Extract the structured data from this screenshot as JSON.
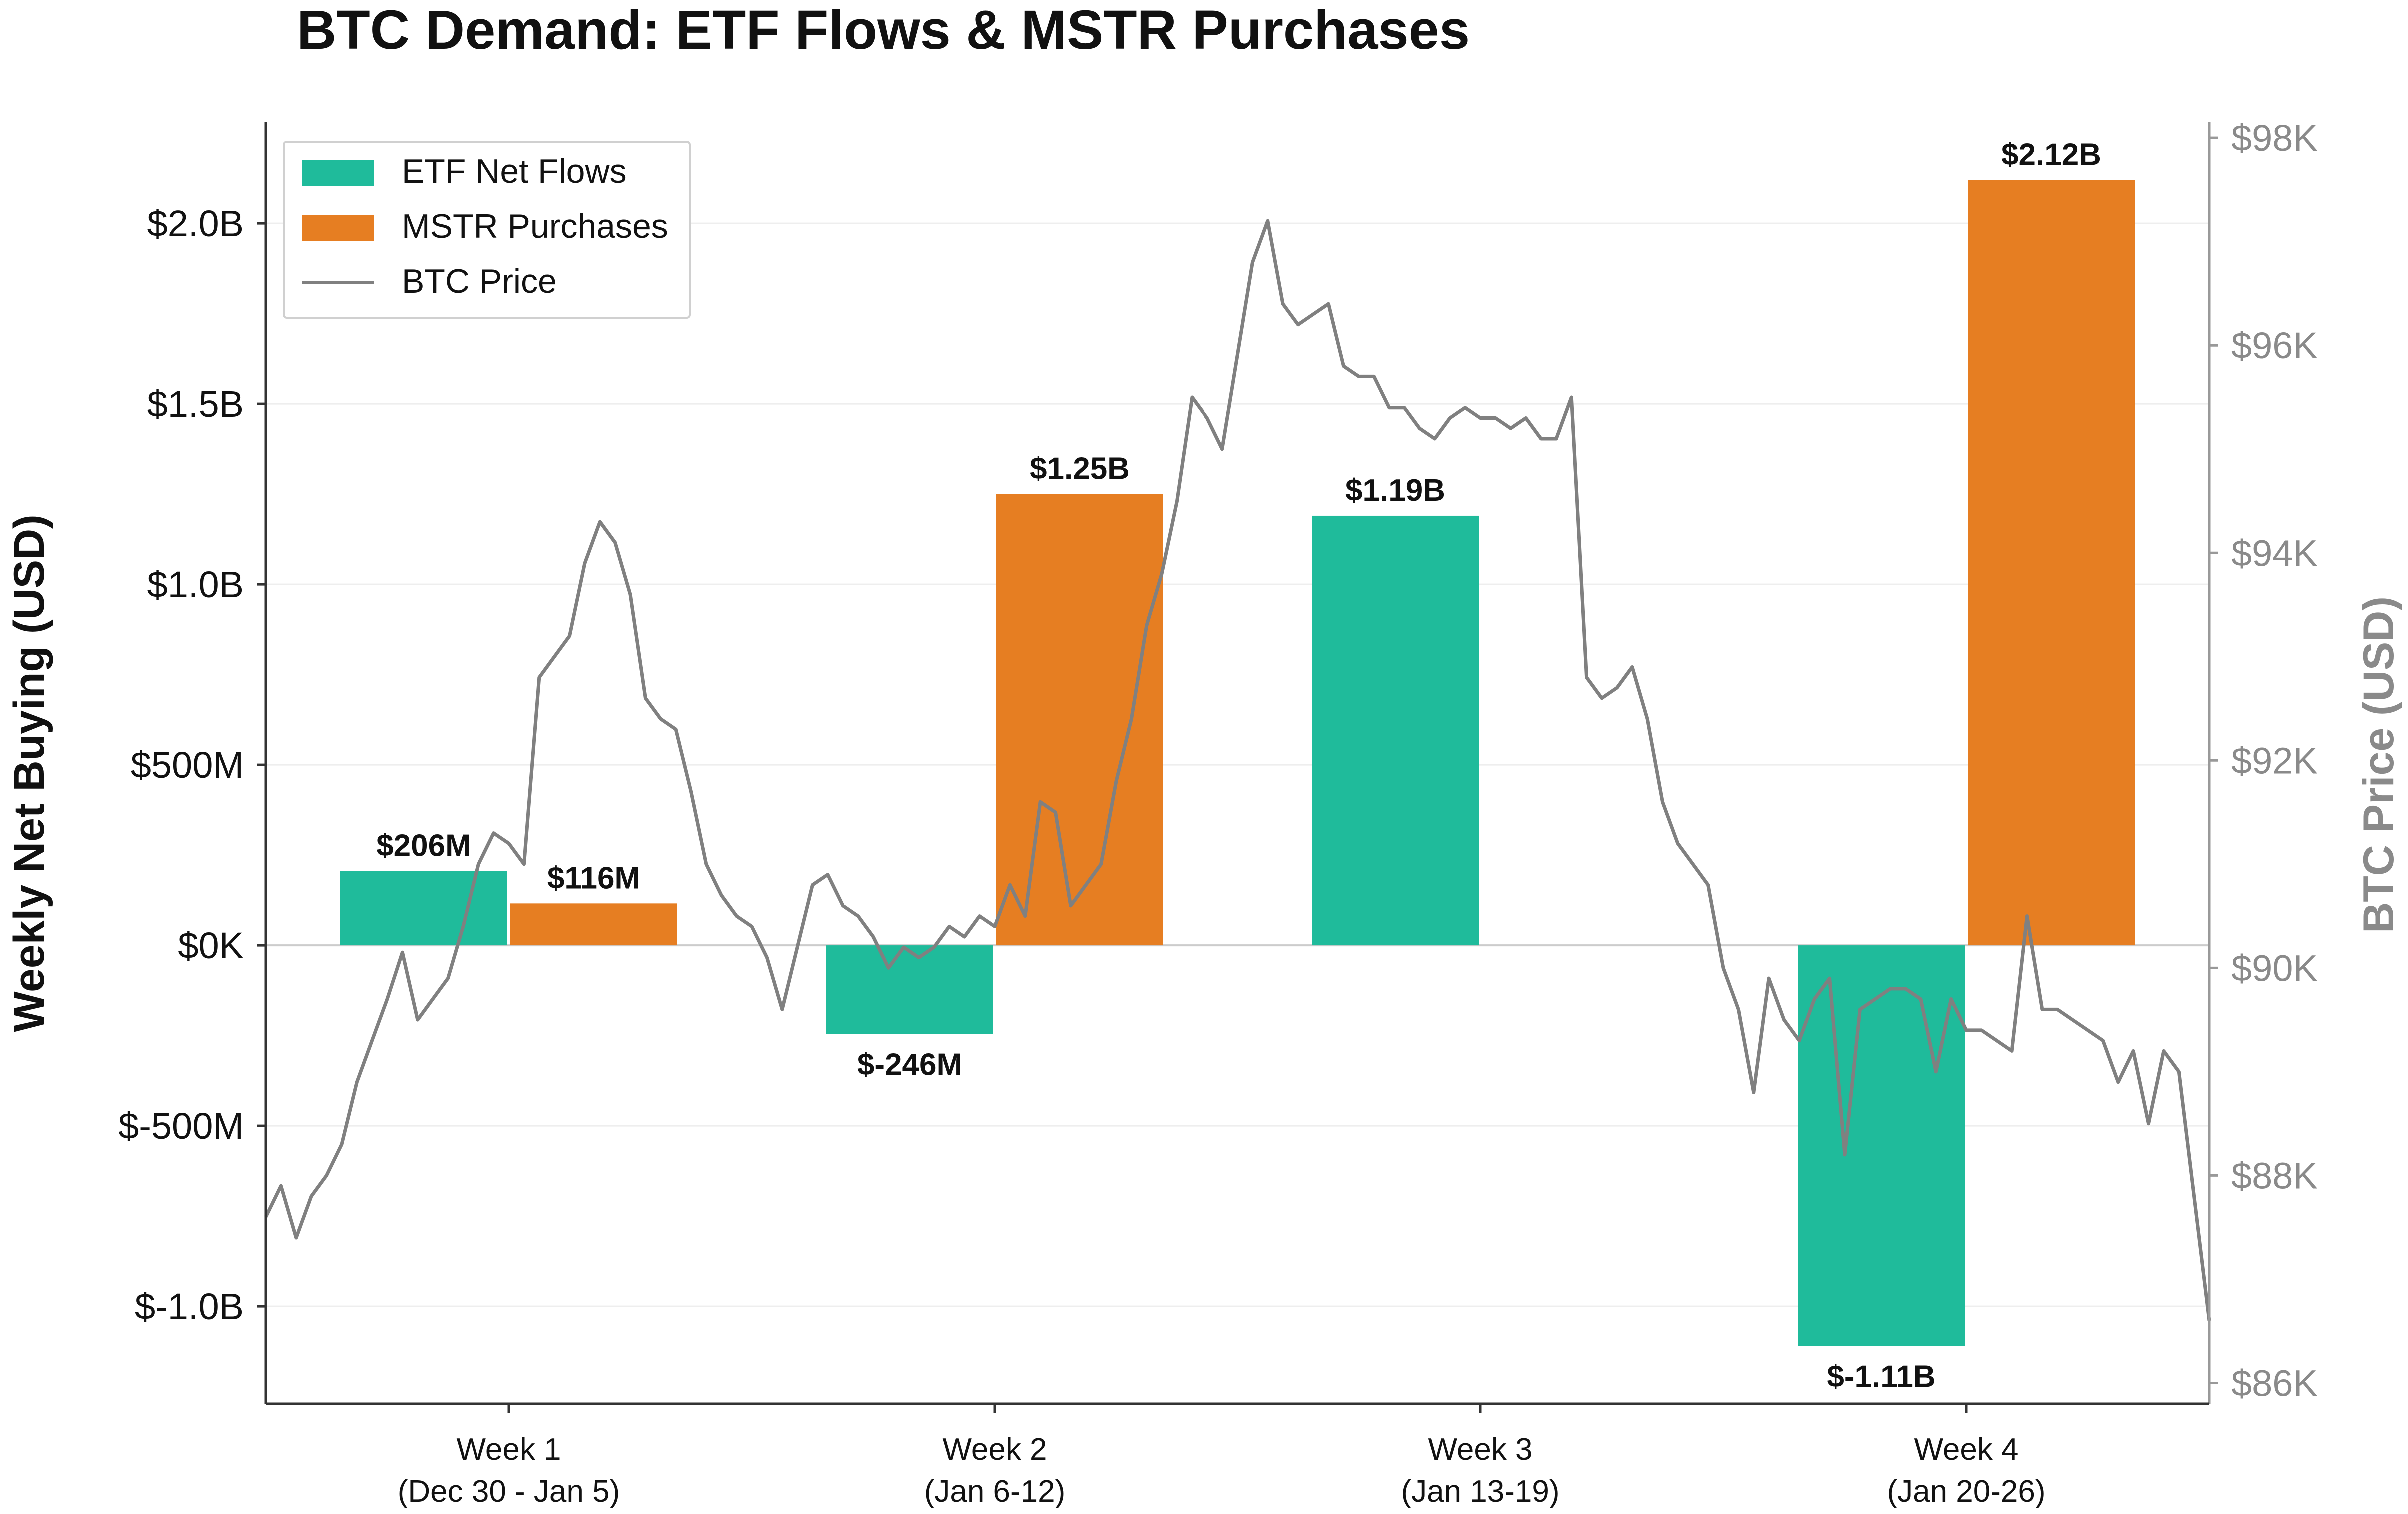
{
  "chart_data": {
    "type": "bar",
    "title": "BTC Demand: ETF Flows & MSTR Purchases",
    "ylabel": "Weekly Net Buying (USD)",
    "y2label": "BTC Price (USD)",
    "xlabel": "",
    "ylim": [
      -1270000000,
      2280000000
    ],
    "y2lim": [
      85800,
      98150
    ],
    "yticks": [
      {
        "value": -1000000000,
        "label": "$-1.0B"
      },
      {
        "value": -500000000,
        "label": "$-500M"
      },
      {
        "value": 0,
        "label": "$0K"
      },
      {
        "value": 500000000,
        "label": "$500M"
      },
      {
        "value": 1000000000,
        "label": "$1.0B"
      },
      {
        "value": 1500000000,
        "label": "$1.5B"
      },
      {
        "value": 2000000000,
        "label": "$2.0B"
      }
    ],
    "y2ticks": [
      {
        "value": 86000,
        "label": "$86K"
      },
      {
        "value": 88000,
        "label": "$88K"
      },
      {
        "value": 90000,
        "label": "$90K"
      },
      {
        "value": 92000,
        "label": "$92K"
      },
      {
        "value": 94000,
        "label": "$94K"
      },
      {
        "value": 96000,
        "label": "$96K"
      },
      {
        "value": 98000,
        "label": "$98K"
      }
    ],
    "categories": [
      {
        "name": "Week 1",
        "range": "(Dec 30 - Jan 5)"
      },
      {
        "name": "Week 2",
        "range": "(Jan 6-12)"
      },
      {
        "name": "Week 3",
        "range": "(Jan 13-19)"
      },
      {
        "name": "Week 4",
        "range": "(Jan 20-26)"
      }
    ],
    "series": [
      {
        "name": "ETF Net Flows",
        "color": "#1fbb9b",
        "values": [
          206000000,
          -246000000,
          1190000000,
          -1110000000
        ],
        "labels": [
          "$206M",
          "$-246M",
          "$1.19B",
          "$-1.11B"
        ]
      },
      {
        "name": "MSTR Purchases",
        "color": "#e67e22",
        "values": [
          116000000,
          1250000000,
          0,
          2120000000
        ],
        "labels": [
          "$116M",
          "$1.25B",
          "",
          "$2.12B"
        ]
      }
    ],
    "line": {
      "name": "BTC Price",
      "color": "#808080",
      "x_range": [
        0,
        28
      ],
      "values": [
        87600,
        87900,
        87400,
        87800,
        88000,
        88300,
        88900,
        89300,
        89700,
        90150,
        89500,
        89700,
        89900,
        90400,
        91000,
        91300,
        91200,
        91000,
        92800,
        93000,
        93200,
        93900,
        94300,
        94100,
        93600,
        92600,
        92400,
        92300,
        91700,
        91000,
        90700,
        90500,
        90400,
        90100,
        89600,
        90200,
        90800,
        90900,
        90600,
        90500,
        90300,
        90000,
        90200,
        90100,
        90200,
        90400,
        90300,
        90500,
        90400,
        90800,
        90500,
        91600,
        91500,
        90600,
        90800,
        91000,
        91800,
        92400,
        93300,
        93800,
        94500,
        95500,
        95300,
        95000,
        95900,
        96800,
        97200,
        96400,
        96200,
        96300,
        96400,
        95800,
        95700,
        95700,
        95400,
        95400,
        95200,
        95100,
        95300,
        95400,
        95300,
        95300,
        95200,
        95300,
        95100,
        95100,
        95500,
        92800,
        92600,
        92700,
        92900,
        92400,
        91600,
        91200,
        91000,
        90800,
        90000,
        89600,
        88800,
        89900,
        89500,
        89300,
        89700,
        89900,
        88200,
        89600,
        89700,
        89800,
        89800,
        89700,
        89000,
        89700,
        89400,
        89400,
        89300,
        89200,
        90500,
        89600,
        89600,
        89500,
        89400,
        89300,
        88900,
        89200,
        88500,
        89200,
        89000,
        87800,
        86600
      ]
    },
    "legend": {
      "position": "top-left"
    },
    "grid": true
  }
}
